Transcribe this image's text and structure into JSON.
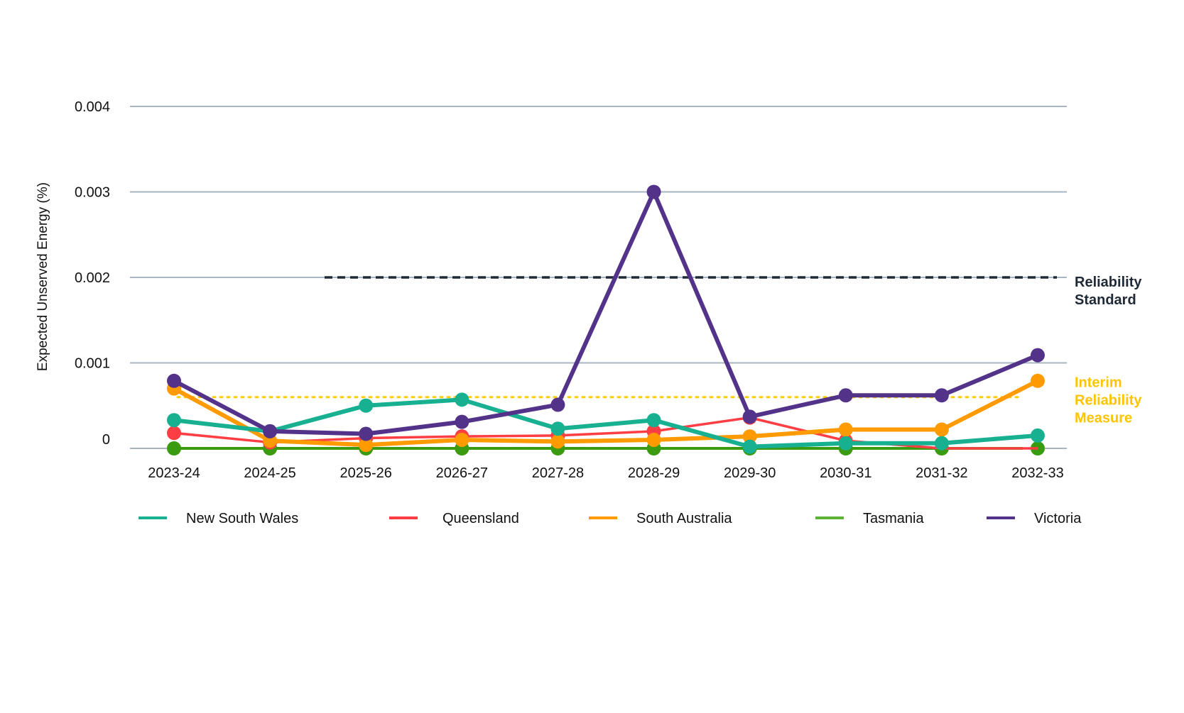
{
  "chart_data": {
    "type": "line",
    "title": "",
    "ylabel": "Expected Unserved Energy (%)",
    "xlabel": "",
    "ylim": [
      0,
      0.004
    ],
    "yticks": [
      "0",
      "0.001",
      "0.002",
      "0.003",
      "0.004"
    ],
    "ytick_values": [
      0,
      0.001,
      0.002,
      0.003,
      0.004
    ],
    "grid": true,
    "legend_position": "bottom",
    "categories": [
      "2023-24",
      "2024-25",
      "2025-26",
      "2026-27",
      "2027-28",
      "2028-29",
      "2029-30",
      "2030-31",
      "2031-32",
      "2032-33"
    ],
    "series": [
      {
        "name": "New South Wales",
        "color": "#17b090",
        "values": [
          0.00033,
          0.0002,
          0.0005,
          0.00057,
          0.00023,
          0.00033,
          2e-05,
          6e-05,
          6e-05,
          0.00015
        ]
      },
      {
        "name": "Queensland",
        "color": "#ff3e44",
        "values": [
          0.00018,
          7e-05,
          0.00012,
          0.00014,
          0.00015,
          0.0002,
          0.00036,
          9e-05,
          0,
          0
        ]
      },
      {
        "name": "South Australia",
        "color": "#ff9a00",
        "values": [
          0.0007,
          9e-05,
          4e-05,
          0.0001,
          8e-05,
          0.0001,
          0.00014,
          0.00022,
          0.00022,
          0.00079
        ]
      },
      {
        "name": "Tasmania",
        "color": "#3a9a10",
        "legend_color": "#5cb335",
        "values": [
          0,
          0,
          0,
          0,
          0,
          0,
          0,
          0,
          0,
          0
        ]
      },
      {
        "name": "Victoria",
        "color": "#533289",
        "values": [
          0.00079,
          0.0002,
          0.00017,
          0.00031,
          0.00051,
          0.003,
          0.00037,
          0.00062,
          0.00062,
          0.00109
        ]
      }
    ],
    "reference_lines": [
      {
        "label_lines": [
          "Reliability",
          "Standard"
        ],
        "value": 0.002,
        "style": "dashed",
        "color": "#1f2a36",
        "from": "2025-26"
      },
      {
        "label_lines": [
          "Interim",
          "Reliability",
          "Measure"
        ],
        "value": 0.0006,
        "style": "dotted",
        "color": "#ffcc00",
        "from": "2023-24"
      }
    ]
  }
}
